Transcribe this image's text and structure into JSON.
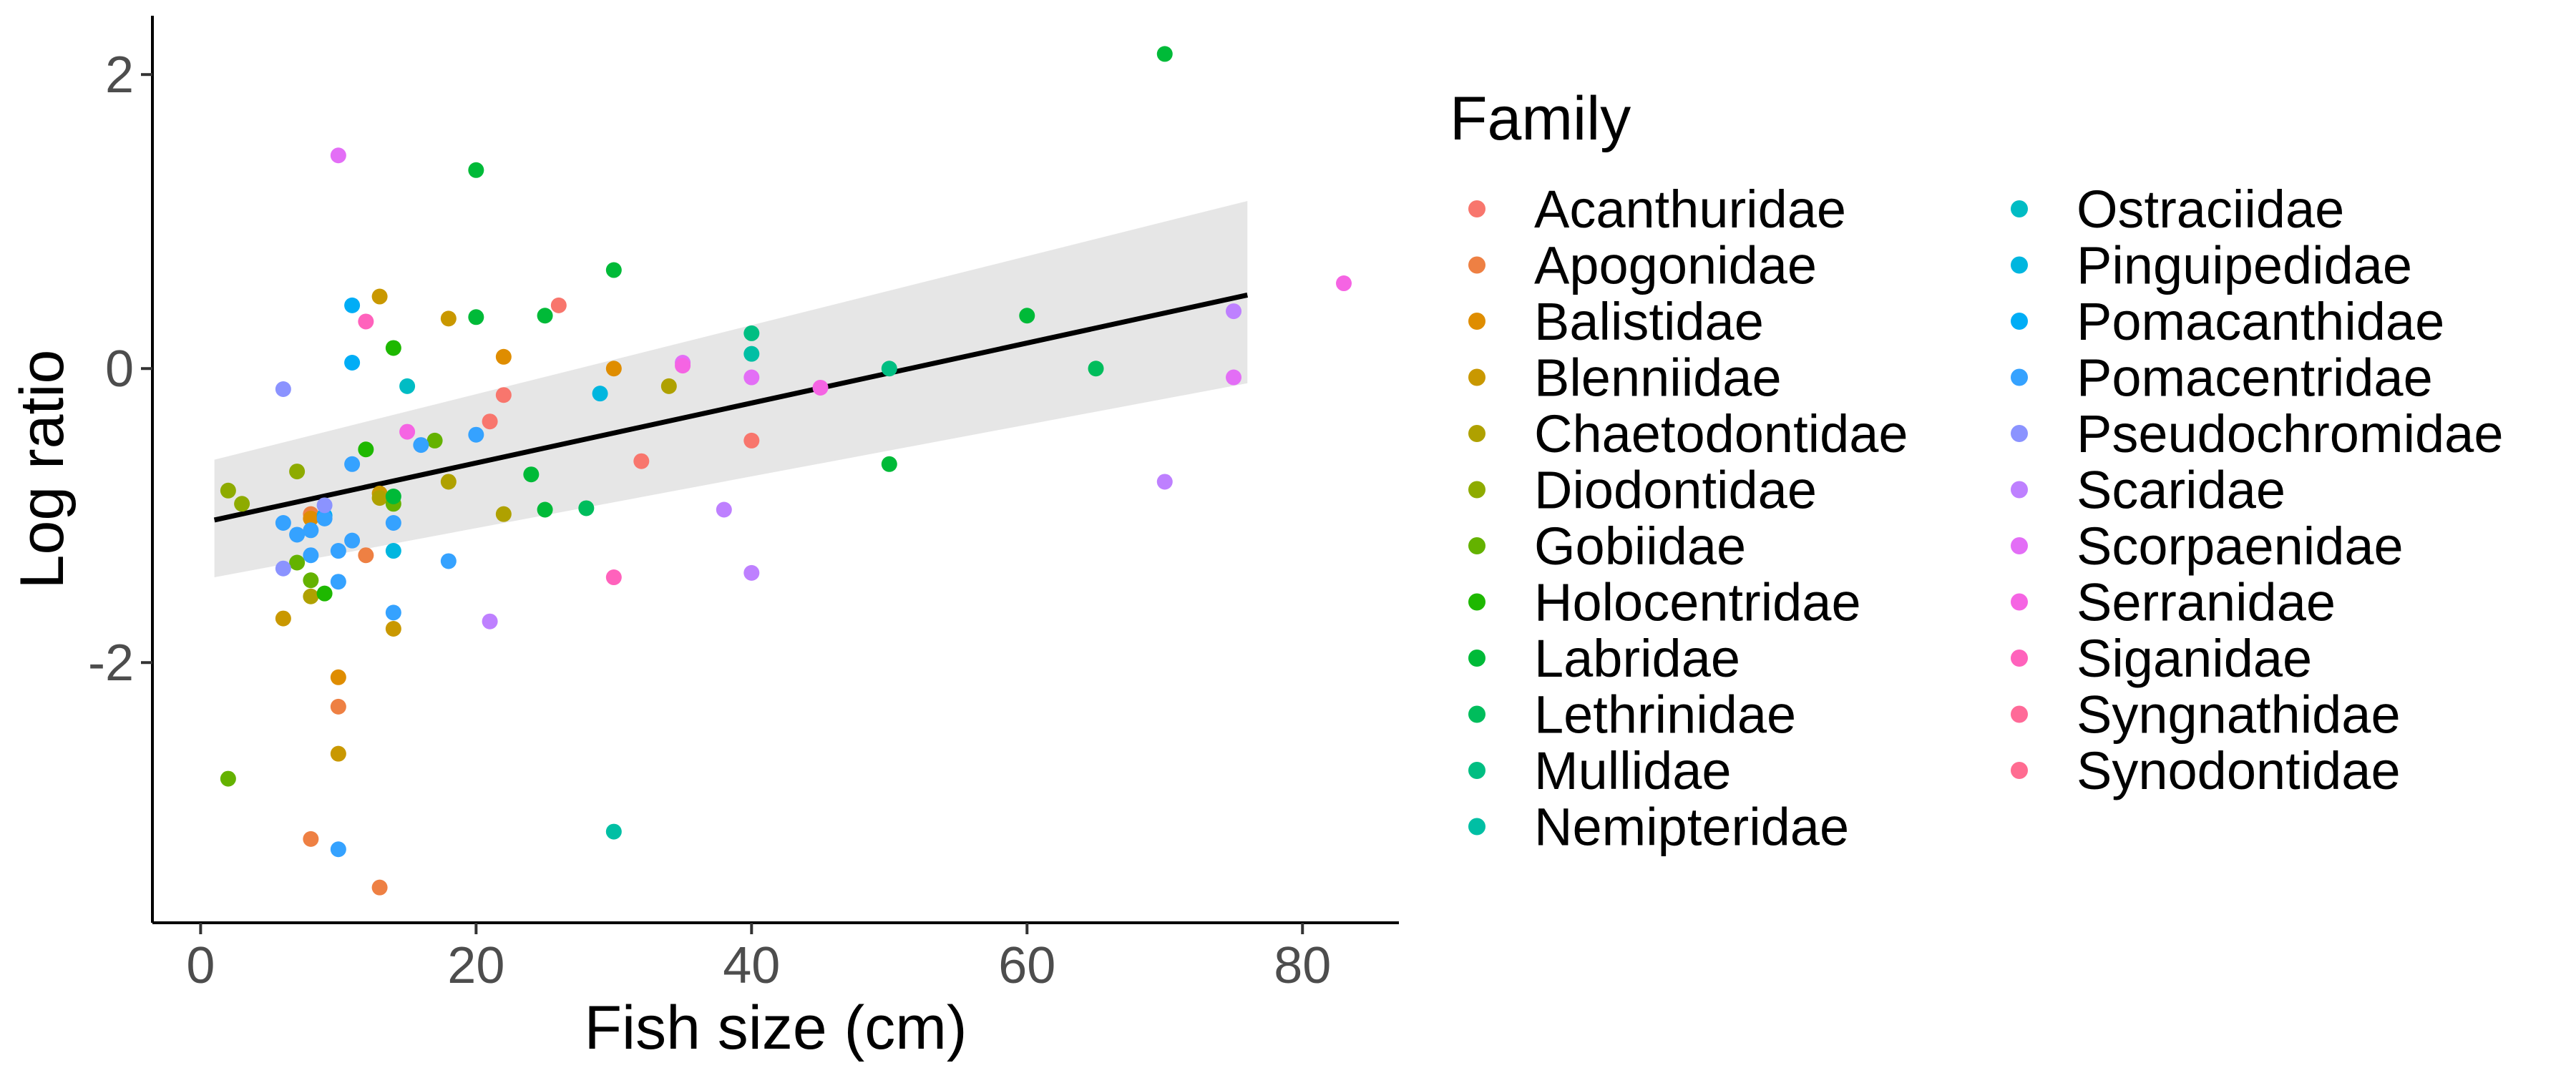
{
  "chart_data": {
    "type": "scatter",
    "xlabel": "Fish size (cm)",
    "ylabel": "Log ratio",
    "xlim": [
      -3.5,
      87
    ],
    "ylim": [
      -3.77,
      2.4
    ],
    "x_ticks": [
      0,
      20,
      40,
      60,
      80
    ],
    "x_tick_labels": [
      "0",
      "20",
      "40",
      "60",
      "80"
    ],
    "y_ticks": [
      2,
      0,
      -2
    ],
    "y_tick_labels": [
      "2",
      "0",
      "-2"
    ],
    "grid": false,
    "legend": {
      "title": "Family",
      "placement": "right",
      "columns": 2
    },
    "trend": {
      "type": "linear fit with confidence band",
      "x": [
        1,
        76
      ],
      "y": [
        -1.03,
        0.5
      ],
      "ci_lower": [
        -1.42,
        -0.1
      ],
      "ci_upper": [
        -0.62,
        1.14
      ],
      "line_color": "#000000",
      "band_color": "#e6e6e6"
    },
    "series": [
      {
        "name": "Acanthuridae",
        "color": "#F8766D",
        "points": [
          [
            22,
            -0.18
          ],
          [
            21,
            -0.36
          ],
          [
            26,
            0.43
          ],
          [
            32,
            -0.63
          ],
          [
            40,
            -0.49
          ]
        ]
      },
      {
        "name": "Apogonidae",
        "color": "#EE8043",
        "points": [
          [
            8,
            -3.2
          ],
          [
            13,
            -3.53
          ],
          [
            10,
            -2.3
          ],
          [
            12,
            -1.27
          ],
          [
            8,
            -0.99
          ]
        ]
      },
      {
        "name": "Balistidae",
        "color": "#DF8D00",
        "points": [
          [
            10,
            -2.1
          ],
          [
            22,
            0.08
          ],
          [
            30,
            0.0
          ],
          [
            8,
            -1.02
          ]
        ]
      },
      {
        "name": "Blenniidae",
        "color": "#C99800",
        "points": [
          [
            6,
            -1.7
          ],
          [
            10,
            -2.62
          ],
          [
            14,
            -1.77
          ],
          [
            18,
            0.34
          ],
          [
            13,
            0.49
          ],
          [
            13,
            -0.85
          ]
        ]
      },
      {
        "name": "Chaetodontidae",
        "color": "#AFA100",
        "points": [
          [
            22,
            -0.99
          ],
          [
            34,
            -0.12
          ],
          [
            18,
            -0.77
          ],
          [
            13,
            -0.88
          ],
          [
            8,
            -1.55
          ]
        ]
      },
      {
        "name": "Diodontidae",
        "color": "#8EAB00",
        "points": [
          [
            2,
            -0.83
          ],
          [
            3,
            -0.92
          ],
          [
            7,
            -0.7
          ]
        ]
      },
      {
        "name": "Gobiidae",
        "color": "#64B200",
        "points": [
          [
            2,
            -2.79
          ],
          [
            8,
            -1.44
          ],
          [
            7,
            -1.32
          ],
          [
            14,
            -0.92
          ],
          [
            17,
            -0.49
          ]
        ]
      },
      {
        "name": "Holocentridae",
        "color": "#1EB800",
        "points": [
          [
            9,
            -1.53
          ],
          [
            12,
            -0.55
          ],
          [
            14,
            0.14
          ]
        ]
      },
      {
        "name": "Labridae",
        "color": "#00BA38",
        "points": [
          [
            70,
            2.14
          ],
          [
            20,
            1.35
          ],
          [
            30,
            0.67
          ],
          [
            25,
            0.36
          ],
          [
            20,
            0.35
          ],
          [
            24,
            -0.72
          ],
          [
            50,
            -0.65
          ],
          [
            14,
            -0.87
          ],
          [
            25,
            -0.96
          ],
          [
            60,
            0.36
          ]
        ]
      },
      {
        "name": "Lethrinidae",
        "color": "#00BD5C",
        "points": [
          [
            65,
            0.0
          ],
          [
            28,
            -0.95
          ]
        ]
      },
      {
        "name": "Mullidae",
        "color": "#00BE82",
        "points": [
          [
            40,
            0.24
          ],
          [
            50,
            0.0
          ]
        ]
      },
      {
        "name": "Nemipteridae",
        "color": "#00BFA4",
        "points": [
          [
            30,
            -3.15
          ],
          [
            40,
            0.1
          ]
        ]
      },
      {
        "name": "Ostraciidae",
        "color": "#00BCC4",
        "points": [
          [
            15,
            -0.12
          ]
        ]
      },
      {
        "name": "Pinguipedidae",
        "color": "#00B6DF",
        "points": [
          [
            29,
            -0.17
          ],
          [
            14,
            -1.24
          ]
        ]
      },
      {
        "name": "Pomacanthidae",
        "color": "#00ADF6",
        "points": [
          [
            11,
            0.43
          ],
          [
            11,
            0.04
          ],
          [
            9,
            -1.0
          ]
        ]
      },
      {
        "name": "Pomacentridae",
        "color": "#35A2FF",
        "points": [
          [
            6,
            -1.05
          ],
          [
            7,
            -1.13
          ],
          [
            8,
            -1.1
          ],
          [
            9,
            -1.02
          ],
          [
            10,
            -1.24
          ],
          [
            10,
            -1.45
          ],
          [
            11,
            -1.17
          ],
          [
            14,
            -1.05
          ],
          [
            14,
            -1.66
          ],
          [
            16,
            -0.52
          ],
          [
            18,
            -1.31
          ],
          [
            20,
            -0.45
          ],
          [
            11,
            -0.65
          ],
          [
            10,
            -3.27
          ],
          [
            8,
            -1.27
          ]
        ]
      },
      {
        "name": "Pseudochromidae",
        "color": "#8B93FF",
        "points": [
          [
            6,
            -0.14
          ],
          [
            9,
            -0.93
          ],
          [
            6,
            -1.36
          ]
        ]
      },
      {
        "name": "Scaridae",
        "color": "#BE80FF",
        "points": [
          [
            21,
            -1.72
          ],
          [
            38,
            -0.96
          ],
          [
            40,
            -1.39
          ],
          [
            70,
            -0.77
          ],
          [
            75,
            0.39
          ]
        ]
      },
      {
        "name": "Scorpaenidae",
        "color": "#E36EF6",
        "points": [
          [
            10,
            1.45
          ],
          [
            35,
            0.04
          ],
          [
            40,
            -0.06
          ],
          [
            75,
            -0.06
          ]
        ]
      },
      {
        "name": "Serranidae",
        "color": "#F564E3",
        "points": [
          [
            15,
            -0.43
          ],
          [
            35,
            0.02
          ],
          [
            83,
            0.58
          ],
          [
            45,
            -0.13
          ]
        ]
      },
      {
        "name": "Siganidae",
        "color": "#FF62BC",
        "points": [
          [
            12,
            0.32
          ],
          [
            30,
            -1.42
          ]
        ]
      },
      {
        "name": "Syngnathidae",
        "color": "#FF6A98",
        "points": []
      },
      {
        "name": "Synodontidae",
        "color": "#FF6C91",
        "points": []
      }
    ]
  }
}
